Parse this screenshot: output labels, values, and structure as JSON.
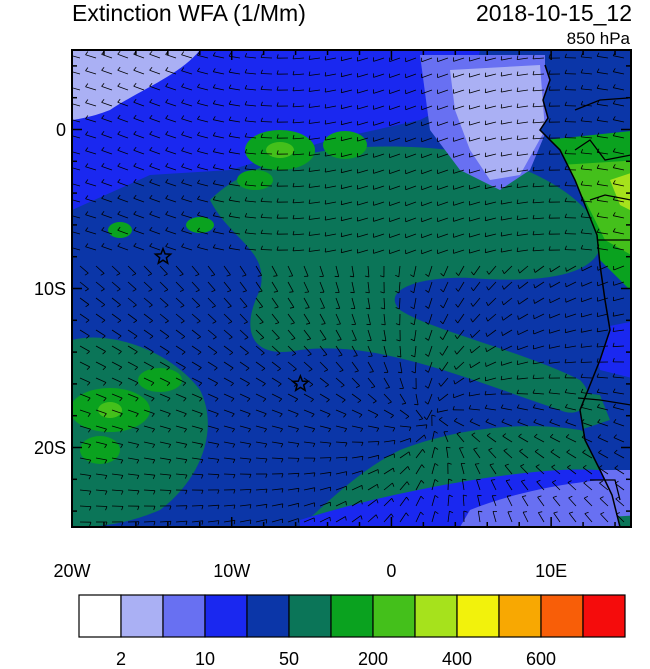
{
  "title_left": "Extinction WFA (1/Mm)",
  "title_right": "2018-10-15_12",
  "level": "850 hPa",
  "map": {
    "lon_range": [
      -20,
      15
    ],
    "lat_range": [
      -25,
      5
    ],
    "x_ticks": [
      {
        "lon": -20,
        "label": "20W"
      },
      {
        "lon": -10,
        "label": "10W"
      },
      {
        "lon": 0,
        "label": "0"
      },
      {
        "lon": 10,
        "label": "10E"
      }
    ],
    "y_ticks": [
      {
        "lat": 0,
        "label": "0"
      },
      {
        "lat": -10,
        "label": "10S"
      },
      {
        "lat": -20,
        "label": "20S"
      }
    ],
    "markers": [
      {
        "name": "star-marker-1",
        "lon": -14.3,
        "lat": -8.0
      },
      {
        "name": "star-marker-2",
        "lon": -5.7,
        "lat": -16.0
      }
    ]
  },
  "colorbar": {
    "colors": [
      "#ffffff",
      "#aab0f4",
      "#6870f2",
      "#1a28f0",
      "#0b36a8",
      "#0b7558",
      "#0aa21f",
      "#44c01b",
      "#a6e21c",
      "#f2f20c",
      "#f8a802",
      "#f85e08",
      "#f50c0c"
    ],
    "labels": [
      {
        "after_box": 1,
        "text": "2"
      },
      {
        "after_box": 3,
        "text": "10"
      },
      {
        "after_box": 5,
        "text": "50"
      },
      {
        "after_box": 7,
        "text": "200"
      },
      {
        "after_box": 9,
        "text": "400"
      },
      {
        "after_box": 11,
        "text": "600"
      }
    ]
  }
}
